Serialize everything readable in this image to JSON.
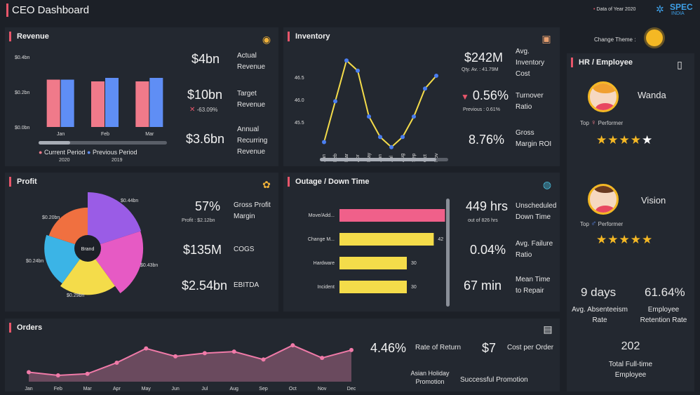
{
  "header": {
    "title": "CEO Dashboard",
    "data_note": "Data of Year 2020",
    "brand": "SPEC",
    "brand_sub": "INDIA",
    "change_theme": "Change Theme :"
  },
  "revenue": {
    "title": "Revenue",
    "kpis": [
      {
        "value": "$4bn",
        "label": "Actual Revenue"
      },
      {
        "value": "$10bn",
        "label": "Target Revenue",
        "delta": "-63.09%"
      },
      {
        "value": "$3.6bn",
        "label": "Annual Recurring Revenue"
      }
    ],
    "legend": [
      {
        "name": "Current Period",
        "year": "2020",
        "color": "#f07a8a"
      },
      {
        "name": "Previous Period",
        "year": "2019",
        "color": "#5f8ef5"
      }
    ]
  },
  "inventory": {
    "title": "Inventory",
    "kpis": [
      {
        "value": "$242M",
        "label": "Avg. Inventory Cost",
        "sub": "Qty. Av. : 41.79M"
      },
      {
        "value": "0.56%",
        "label": "Turnover Ratio",
        "sub": "Previous : 0.61%"
      },
      {
        "value": "8.76%",
        "label": "Gross Margin ROI"
      }
    ]
  },
  "profit": {
    "title": "Profit",
    "center_label": "Brand",
    "kpis": [
      {
        "value": "57%",
        "label": "Gross Profit Margin",
        "sub": "Profit : $2.12bn"
      },
      {
        "value": "$135M",
        "label": "COGS"
      },
      {
        "value": "$2.54bn",
        "label": "EBITDA"
      }
    ]
  },
  "outage": {
    "title": "Outage / Down Time",
    "kpis": [
      {
        "value": "449 hrs",
        "label": "Unscheduled Down Time",
        "sub": "out of 826 hrs"
      },
      {
        "value": "0.04%",
        "label": "Avg. Failure Ratio"
      },
      {
        "value": "67 min",
        "label": "Mean Time to Repair"
      }
    ]
  },
  "orders": {
    "title": "Orders",
    "kpis": [
      {
        "value": "4.46%",
        "label": "Rate of Return"
      },
      {
        "value": "$7",
        "label": "Cost per Order"
      }
    ],
    "promotions": [
      "Asian Holiday Promotion",
      "Successful Promotion"
    ]
  },
  "hr": {
    "title": "HR / Employee",
    "employees": [
      {
        "name": "Wanda",
        "performer": "Performer",
        "top": "Top",
        "stars": 4,
        "gender_icon": "♀"
      },
      {
        "name": "Vision",
        "performer": "Performer",
        "top": "Top",
        "stars": 5,
        "gender_icon": "♂"
      }
    ],
    "stats": [
      {
        "value": "9 days",
        "label": "Avg. Absenteeism Rate"
      },
      {
        "value": "61.64%",
        "label": "Employee Retention Rate"
      },
      {
        "value": "202",
        "label": "Total Full-time Employee"
      }
    ]
  },
  "chart_data": [
    {
      "id": "revenue",
      "type": "bar",
      "categories": [
        "Jan",
        "Feb",
        "Mar"
      ],
      "series": [
        {
          "name": "Current Period",
          "values": [
            0.27,
            0.26,
            0.26
          ]
        },
        {
          "name": "Previous Period",
          "values": [
            0.27,
            0.28,
            0.28
          ]
        }
      ],
      "yticks": [
        "$0.4bn",
        "$0.2bn",
        "$0.0bn"
      ],
      "ylim": [
        0,
        0.4
      ]
    },
    {
      "id": "inventory",
      "type": "line",
      "categories": [
        "Jan",
        "Feb",
        "Mar",
        "Apr",
        "May",
        "Jun",
        "Jul",
        "Aug",
        "Sep",
        "Oct",
        "Nov"
      ],
      "values": [
        45.3,
        46.1,
        46.9,
        46.7,
        45.8,
        45.4,
        45.2,
        45.4,
        45.8,
        46.35,
        46.6
      ],
      "yticks": [
        "46.5",
        "46.0",
        "45.5"
      ],
      "ylim": [
        45.1,
        47.0
      ]
    },
    {
      "id": "profit",
      "type": "pie",
      "slices": [
        {
          "label": "$0.44bn",
          "value": 0.44,
          "color": "#9a5ce6"
        },
        {
          "label": "$0.43bn",
          "value": 0.43,
          "color": "#e65ac4"
        },
        {
          "label": "$0.29bn",
          "value": 0.29,
          "color": "#f4dc4a"
        },
        {
          "label": "$0.24bn",
          "value": 0.24,
          "color": "#3bb4e6"
        },
        {
          "label": "$0.20bn",
          "value": 0.2,
          "color": "#f07040"
        }
      ]
    },
    {
      "id": "outage",
      "type": "bar",
      "orientation": "horizontal",
      "categories": [
        "Move/Add...",
        "Change M...",
        "Hardware",
        "Incident"
      ],
      "values": [
        47,
        42,
        30,
        30
      ],
      "colors": [
        "#f0608a",
        "#f4dc4a",
        "#f4dc4a",
        "#f4dc4a"
      ],
      "xlim": [
        0,
        50
      ]
    },
    {
      "id": "orders",
      "type": "area",
      "categories": [
        "Jan",
        "Feb",
        "Mar",
        "Apr",
        "May",
        "Jun",
        "Jul",
        "Aug",
        "Sep",
        "Oct",
        "Nov",
        "Dec"
      ],
      "values": [
        12,
        8,
        10,
        24,
        42,
        32,
        36,
        38,
        28,
        46,
        30,
        40
      ],
      "ylim": [
        0,
        55
      ]
    }
  ]
}
